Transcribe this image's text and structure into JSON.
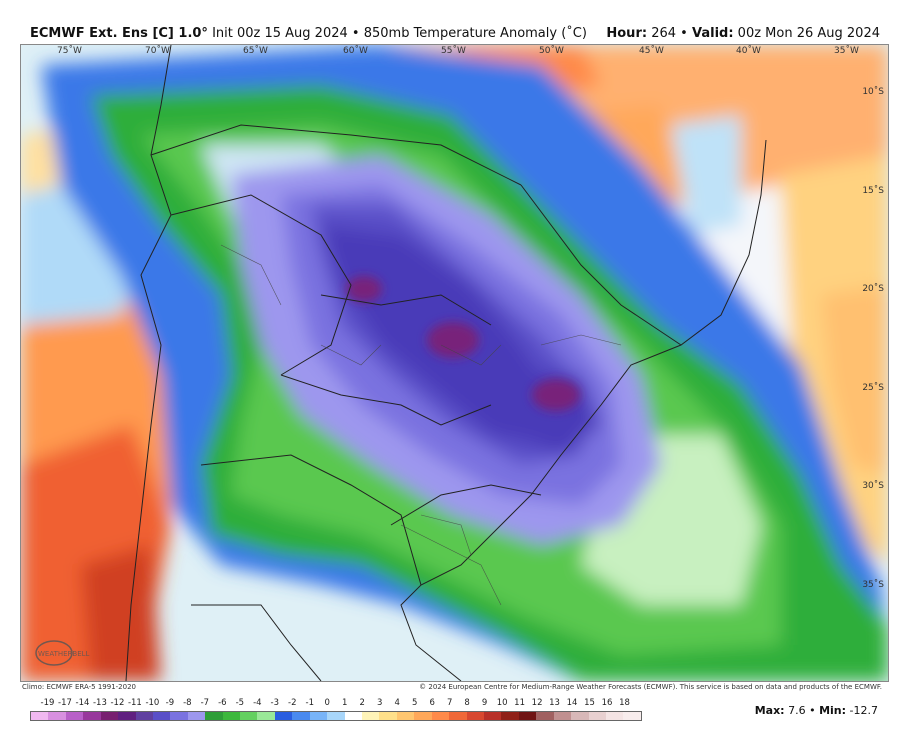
{
  "header": {
    "model": "ECMWF Ext. Ens [C] 1.0°",
    "init": "Init 00z 15 Aug 2024",
    "separator": "•",
    "field": "850mb Temperature Anomaly (˚C)",
    "hour_label": "Hour:",
    "hour_value": "264",
    "valid_label": "Valid:",
    "valid_value": "00z Mon 26 Aug 2024"
  },
  "map": {
    "longitudes": [
      "75˚W",
      "70˚W",
      "65˚W",
      "60˚W",
      "55˚W",
      "50˚W",
      "45˚W",
      "40˚W",
      "35˚W"
    ],
    "latitudes": [
      "10˚S",
      "15˚S",
      "20˚S",
      "25˚S",
      "30˚S",
      "35˚S"
    ]
  },
  "footer": {
    "climo": "Climo: ECMWF ERA-5 1991-2020",
    "copyright": "© 2024 European Centre for Medium-Range Weather Forecasts (ECMWF). This service is based on data and products of the ECMWF."
  },
  "scale": {
    "labels": [
      "-19",
      "-17",
      "-14",
      "-13",
      "-12",
      "-11",
      "-10",
      "-9",
      "-8",
      "-7",
      "-6",
      "-5",
      "-4",
      "-3",
      "-2",
      "-1",
      "0",
      "1",
      "2",
      "3",
      "4",
      "5",
      "6",
      "7",
      "8",
      "9",
      "10",
      "11",
      "12",
      "13",
      "14",
      "15",
      "16",
      "18"
    ],
    "colors": [
      "#f0b8f0",
      "#d890e0",
      "#b860c8",
      "#98389c",
      "#782070",
      "#602080",
      "#6040a0",
      "#5a4fc8",
      "#7a72e0",
      "#9d97ee",
      "#2e9e38",
      "#3cb83c",
      "#64d060",
      "#9ae898",
      "#2a5de0",
      "#4a8af0",
      "#78b4f8",
      "#a8d6fa",
      "#ffffff",
      "#fff4b8",
      "#ffe08a",
      "#ffc670",
      "#ffa85a",
      "#ff8a4a",
      "#f06838",
      "#d84830",
      "#b83028",
      "#902018",
      "#701414",
      "#a06060",
      "#c09090",
      "#d8b8b8",
      "#e8d0d0",
      "#f4e4e4",
      "#f8eded"
    ]
  },
  "stats": {
    "max_label": "Max:",
    "max_value": "7.6",
    "separator": "•",
    "min_label": "Min:",
    "min_value": "-12.7"
  },
  "logo": {
    "text": "WEATHERBELL"
  }
}
